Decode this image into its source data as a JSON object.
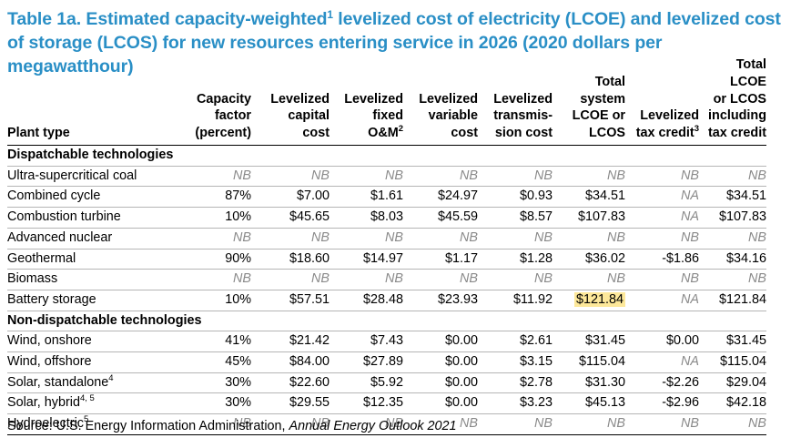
{
  "title": {
    "part1": "Table 1a. Estimated capacity-weighted",
    "sup": "1",
    "part2": " levelized cost of electricity (LCOE) and levelized cost of storage (LCOS) for new resources entering service in 2026 (2020 dollars per megawatthour)"
  },
  "columns": {
    "plant_type": "Plant type",
    "capacity_factor": [
      "Capacity",
      "factor",
      "(percent)"
    ],
    "capital": [
      "Levelized",
      "capital",
      "cost"
    ],
    "fixed": [
      "Levelized",
      "fixed",
      "O&M"
    ],
    "fixed_sup": "2",
    "variable": [
      "Levelized",
      "variable",
      "cost"
    ],
    "transmission": [
      "Levelized",
      "transmis-",
      "sion cost"
    ],
    "total": [
      "Total",
      "system",
      "LCOE or",
      "LCOS"
    ],
    "tax": [
      "Levelized",
      "tax credit"
    ],
    "tax_sup": "3",
    "total_tax": [
      "Total LCOE",
      "or LCOS",
      "including",
      "tax credit"
    ]
  },
  "sections": {
    "dispatchable": "Dispatchable technologies",
    "nondispatchable": "Non-dispatchable technologies"
  },
  "rows": {
    "r0": {
      "name": "Ultra-supercritical coal",
      "sup": "",
      "v": [
        "NB",
        "NB",
        "NB",
        "NB",
        "NB",
        "NB",
        "NB",
        "NB"
      ]
    },
    "r1": {
      "name": "Combined cycle",
      "sup": "",
      "v": [
        "87%",
        "$7.00",
        "$1.61",
        "$24.97",
        "$0.93",
        "$34.51",
        "NA",
        "$34.51"
      ]
    },
    "r2": {
      "name": "Combustion turbine",
      "sup": "",
      "v": [
        "10%",
        "$45.65",
        "$8.03",
        "$45.59",
        "$8.57",
        "$107.83",
        "NA",
        "$107.83"
      ]
    },
    "r3": {
      "name": "Advanced nuclear",
      "sup": "",
      "v": [
        "NB",
        "NB",
        "NB",
        "NB",
        "NB",
        "NB",
        "NB",
        "NB"
      ]
    },
    "r4": {
      "name": "Geothermal",
      "sup": "",
      "v": [
        "90%",
        "$18.60",
        "$14.97",
        "$1.17",
        "$1.28",
        "$36.02",
        "-$1.86",
        "$34.16"
      ]
    },
    "r5": {
      "name": "Biomass",
      "sup": "",
      "v": [
        "NB",
        "NB",
        "NB",
        "NB",
        "NB",
        "NB",
        "NB",
        "NB"
      ]
    },
    "r6": {
      "name": "Battery storage",
      "sup": "",
      "v": [
        "10%",
        "$57.51",
        "$28.48",
        "$23.93",
        "$11.92",
        "$121.84",
        "NA",
        "$121.84"
      ]
    },
    "r7": {
      "name": "Wind, onshore",
      "sup": "",
      "v": [
        "41%",
        "$21.42",
        "$7.43",
        "$0.00",
        "$2.61",
        "$31.45",
        "$0.00",
        "$31.45"
      ]
    },
    "r8": {
      "name": "Wind, offshore",
      "sup": "",
      "v": [
        "45%",
        "$84.00",
        "$27.89",
        "$0.00",
        "$3.15",
        "$115.04",
        "NA",
        "$115.04"
      ]
    },
    "r9": {
      "name": "Solar, standalone",
      "sup": "4",
      "v": [
        "30%",
        "$22.60",
        "$5.92",
        "$0.00",
        "$2.78",
        "$31.30",
        "-$2.26",
        "$29.04"
      ]
    },
    "r10": {
      "name": "Solar, hybrid",
      "sup": "4, 5",
      "v": [
        "30%",
        "$29.55",
        "$12.35",
        "$0.00",
        "$3.23",
        "$45.13",
        "-$2.96",
        "$42.18"
      ]
    },
    "r11": {
      "name": "Hydroelectric",
      "sup": "5",
      "v": [
        "NB",
        "NB",
        "NB",
        "NB",
        "NB",
        "NB",
        "NB",
        "NB"
      ]
    }
  },
  "source": {
    "prefix": "Source: U.S. Energy Information Administration, ",
    "publication": "Annual Energy Outlook 2021"
  },
  "colors": {
    "title": "#2a8fc6",
    "highlight": "#fde89a",
    "na_text": "#8a8a8a"
  }
}
